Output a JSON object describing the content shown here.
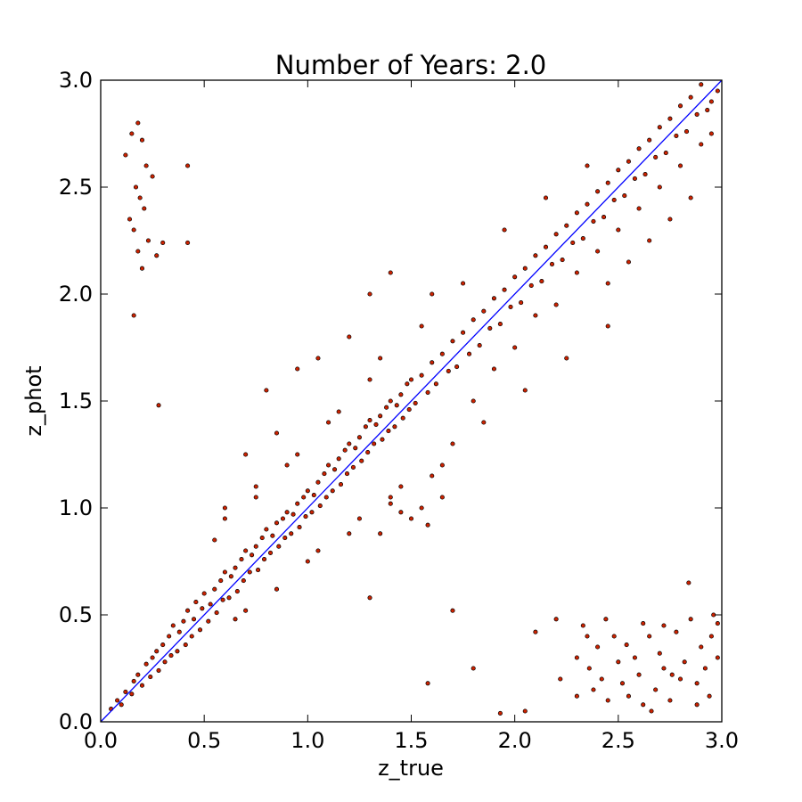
{
  "chart_data": {
    "type": "scatter",
    "title": "Number of Years: 2.0",
    "xlabel": "z_true",
    "ylabel": "z_phot",
    "xlim": [
      0.0,
      3.0
    ],
    "ylim": [
      0.0,
      3.0
    ],
    "x_ticks": [
      "0.0",
      "0.5",
      "1.0",
      "1.5",
      "2.0",
      "2.5",
      "3.0"
    ],
    "y_ticks": [
      "0.0",
      "0.5",
      "1.0",
      "1.5",
      "2.0",
      "2.5",
      "3.0"
    ],
    "grid": false,
    "legend": "none",
    "colors": {
      "marker_fill": "#cc2200",
      "marker_edge": "#000000",
      "reference_line": "#0000ff"
    },
    "reference_line": {
      "x": [
        0.0,
        3.0
      ],
      "y": [
        0.0,
        3.0
      ]
    },
    "series": [
      {
        "points": [
          [
            0.05,
            0.06
          ],
          [
            0.08,
            0.1
          ],
          [
            0.1,
            0.08
          ],
          [
            0.12,
            0.14
          ],
          [
            0.15,
            0.13
          ],
          [
            0.16,
            0.19
          ],
          [
            0.18,
            0.22
          ],
          [
            0.2,
            0.17
          ],
          [
            0.22,
            0.27
          ],
          [
            0.24,
            0.21
          ],
          [
            0.25,
            0.3
          ],
          [
            0.27,
            0.33
          ],
          [
            0.28,
            0.24
          ],
          [
            0.3,
            0.36
          ],
          [
            0.31,
            0.28
          ],
          [
            0.33,
            0.4
          ],
          [
            0.34,
            0.31
          ],
          [
            0.35,
            0.45
          ],
          [
            0.37,
            0.33
          ],
          [
            0.38,
            0.42
          ],
          [
            0.4,
            0.47
          ],
          [
            0.41,
            0.36
          ],
          [
            0.42,
            0.52
          ],
          [
            0.44,
            0.4
          ],
          [
            0.45,
            0.48
          ],
          [
            0.46,
            0.56
          ],
          [
            0.48,
            0.43
          ],
          [
            0.49,
            0.53
          ],
          [
            0.5,
            0.6
          ],
          [
            0.52,
            0.47
          ],
          [
            0.53,
            0.55
          ],
          [
            0.55,
            0.62
          ],
          [
            0.56,
            0.51
          ],
          [
            0.58,
            0.66
          ],
          [
            0.59,
            0.57
          ],
          [
            0.6,
            0.7
          ],
          [
            0.62,
            0.58
          ],
          [
            0.63,
            0.68
          ],
          [
            0.65,
            0.72
          ],
          [
            0.66,
            0.61
          ],
          [
            0.68,
            0.76
          ],
          [
            0.69,
            0.66
          ],
          [
            0.7,
            0.8
          ],
          [
            0.72,
            0.7
          ],
          [
            0.73,
            0.78
          ],
          [
            0.75,
            0.82
          ],
          [
            0.76,
            0.71
          ],
          [
            0.78,
            0.86
          ],
          [
            0.79,
            0.76
          ],
          [
            0.8,
            0.9
          ],
          [
            0.82,
            0.79
          ],
          [
            0.83,
            0.87
          ],
          [
            0.85,
            0.93
          ],
          [
            0.86,
            0.82
          ],
          [
            0.88,
            0.95
          ],
          [
            0.89,
            0.86
          ],
          [
            0.9,
            0.98
          ],
          [
            0.92,
            0.88
          ],
          [
            0.93,
            0.97
          ],
          [
            0.95,
            1.02
          ],
          [
            0.96,
            0.91
          ],
          [
            0.98,
            1.05
          ],
          [
            0.99,
            0.96
          ],
          [
            1.0,
            1.08
          ],
          [
            1.02,
            0.98
          ],
          [
            1.03,
            1.06
          ],
          [
            1.05,
            1.12
          ],
          [
            1.06,
            1.01
          ],
          [
            1.08,
            1.16
          ],
          [
            1.09,
            1.05
          ],
          [
            1.1,
            1.2
          ],
          [
            1.12,
            1.08
          ],
          [
            1.13,
            1.18
          ],
          [
            1.15,
            1.23
          ],
          [
            1.16,
            1.11
          ],
          [
            1.18,
            1.27
          ],
          [
            1.19,
            1.16
          ],
          [
            1.2,
            1.3
          ],
          [
            1.22,
            1.19
          ],
          [
            1.23,
            1.28
          ],
          [
            1.25,
            1.33
          ],
          [
            1.26,
            1.22
          ],
          [
            1.28,
            1.38
          ],
          [
            1.29,
            1.26
          ],
          [
            1.3,
            1.41
          ],
          [
            1.32,
            1.3
          ],
          [
            1.33,
            1.39
          ],
          [
            1.35,
            1.43
          ],
          [
            1.36,
            1.32
          ],
          [
            1.38,
            1.47
          ],
          [
            1.39,
            1.36
          ],
          [
            1.4,
            1.5
          ],
          [
            1.42,
            1.38
          ],
          [
            1.43,
            1.48
          ],
          [
            1.45,
            1.53
          ],
          [
            1.46,
            1.42
          ],
          [
            1.48,
            1.58
          ],
          [
            1.49,
            1.46
          ],
          [
            1.5,
            1.6
          ],
          [
            1.52,
            1.49
          ],
          [
            1.55,
            1.62
          ],
          [
            1.58,
            1.54
          ],
          [
            1.6,
            1.68
          ],
          [
            1.62,
            1.58
          ],
          [
            1.65,
            1.72
          ],
          [
            1.68,
            1.64
          ],
          [
            1.7,
            1.78
          ],
          [
            1.72,
            1.66
          ],
          [
            1.75,
            1.82
          ],
          [
            1.78,
            1.72
          ],
          [
            1.8,
            1.88
          ],
          [
            1.83,
            1.76
          ],
          [
            1.85,
            1.92
          ],
          [
            1.88,
            1.84
          ],
          [
            1.9,
            1.98
          ],
          [
            1.93,
            1.86
          ],
          [
            1.95,
            2.02
          ],
          [
            1.98,
            1.94
          ],
          [
            2.0,
            2.08
          ],
          [
            2.03,
            1.96
          ],
          [
            2.05,
            2.12
          ],
          [
            2.08,
            2.04
          ],
          [
            2.1,
            2.18
          ],
          [
            2.13,
            2.06
          ],
          [
            2.15,
            2.22
          ],
          [
            2.18,
            2.14
          ],
          [
            2.2,
            2.28
          ],
          [
            2.23,
            2.16
          ],
          [
            2.25,
            2.32
          ],
          [
            2.28,
            2.24
          ],
          [
            2.3,
            2.38
          ],
          [
            2.33,
            2.26
          ],
          [
            2.35,
            2.42
          ],
          [
            2.38,
            2.34
          ],
          [
            2.4,
            2.48
          ],
          [
            2.43,
            2.36
          ],
          [
            2.45,
            2.52
          ],
          [
            2.48,
            2.44
          ],
          [
            2.5,
            2.58
          ],
          [
            2.53,
            2.46
          ],
          [
            2.55,
            2.62
          ],
          [
            2.58,
            2.54
          ],
          [
            2.6,
            2.68
          ],
          [
            2.63,
            2.56
          ],
          [
            2.65,
            2.72
          ],
          [
            2.68,
            2.64
          ],
          [
            2.7,
            2.78
          ],
          [
            2.73,
            2.66
          ],
          [
            2.75,
            2.82
          ],
          [
            2.78,
            2.74
          ],
          [
            2.8,
            2.88
          ],
          [
            2.83,
            2.76
          ],
          [
            2.85,
            2.92
          ],
          [
            2.88,
            2.84
          ],
          [
            2.9,
            2.98
          ],
          [
            2.93,
            2.86
          ],
          [
            2.95,
            2.9
          ],
          [
            2.98,
            2.95
          ],
          [
            0.55,
            0.85
          ],
          [
            0.65,
            0.48
          ],
          [
            0.75,
            1.05
          ],
          [
            0.85,
            0.62
          ],
          [
            0.95,
            1.25
          ],
          [
            1.05,
            0.8
          ],
          [
            1.15,
            1.45
          ],
          [
            1.25,
            0.95
          ],
          [
            1.35,
            1.7
          ],
          [
            1.45,
            1.1
          ],
          [
            1.55,
            1.85
          ],
          [
            1.65,
            1.2
          ],
          [
            1.75,
            2.05
          ],
          [
            1.85,
            1.4
          ],
          [
            1.95,
            2.3
          ],
          [
            2.05,
            1.55
          ],
          [
            2.15,
            2.45
          ],
          [
            2.25,
            1.7
          ],
          [
            2.35,
            2.6
          ],
          [
            2.45,
            1.85
          ],
          [
            0.6,
            0.95
          ],
          [
            0.7,
            0.52
          ],
          [
            0.9,
            1.2
          ],
          [
            1.0,
            0.75
          ],
          [
            1.1,
            1.4
          ],
          [
            1.2,
            0.88
          ],
          [
            1.3,
            1.6
          ],
          [
            1.4,
            1.02
          ],
          [
            1.6,
            2.0
          ],
          [
            1.7,
            1.3
          ],
          [
            1.5,
            0.95
          ],
          [
            1.55,
            1.0
          ],
          [
            1.45,
            0.98
          ],
          [
            1.4,
            1.05
          ],
          [
            1.6,
            1.15
          ],
          [
            1.58,
            0.92
          ],
          [
            1.35,
            0.88
          ],
          [
            1.65,
            1.05
          ],
          [
            1.8,
            1.5
          ],
          [
            1.9,
            1.65
          ],
          [
            2.0,
            1.75
          ],
          [
            2.1,
            1.9
          ],
          [
            2.2,
            1.95
          ],
          [
            2.3,
            2.1
          ],
          [
            2.4,
            2.2
          ],
          [
            2.5,
            2.3
          ],
          [
            2.6,
            2.4
          ],
          [
            2.7,
            2.5
          ],
          [
            2.8,
            2.6
          ],
          [
            2.9,
            2.7
          ],
          [
            2.95,
            2.75
          ],
          [
            2.85,
            2.45
          ],
          [
            2.75,
            2.35
          ],
          [
            2.65,
            2.25
          ],
          [
            2.55,
            2.15
          ],
          [
            2.45,
            2.05
          ],
          [
            0.6,
            1.0
          ],
          [
            0.75,
            1.1
          ],
          [
            0.85,
            1.35
          ],
          [
            0.8,
            1.55
          ],
          [
            0.95,
            1.65
          ],
          [
            0.7,
            1.25
          ],
          [
            1.05,
            1.7
          ],
          [
            1.2,
            1.8
          ],
          [
            1.3,
            2.0
          ],
          [
            1.4,
            2.1
          ],
          [
            0.12,
            2.65
          ],
          [
            0.15,
            2.75
          ],
          [
            0.18,
            2.8
          ],
          [
            0.2,
            2.72
          ],
          [
            0.22,
            2.6
          ],
          [
            0.17,
            2.5
          ],
          [
            0.19,
            2.45
          ],
          [
            0.21,
            2.4
          ],
          [
            0.25,
            2.55
          ],
          [
            0.16,
            2.3
          ],
          [
            0.14,
            2.35
          ],
          [
            0.18,
            2.2
          ],
          [
            0.2,
            2.12
          ],
          [
            0.23,
            2.25
          ],
          [
            0.27,
            2.18
          ],
          [
            0.3,
            2.24
          ],
          [
            0.42,
            2.24
          ],
          [
            0.42,
            2.6
          ],
          [
            0.16,
            1.9
          ],
          [
            0.28,
            1.48
          ],
          [
            2.33,
            0.45
          ],
          [
            2.36,
            0.25
          ],
          [
            2.38,
            0.15
          ],
          [
            2.4,
            0.35
          ],
          [
            2.42,
            0.2
          ],
          [
            2.45,
            0.1
          ],
          [
            2.48,
            0.4
          ],
          [
            2.5,
            0.28
          ],
          [
            2.52,
            0.18
          ],
          [
            2.55,
            0.12
          ],
          [
            2.58,
            0.3
          ],
          [
            2.6,
            0.22
          ],
          [
            2.62,
            0.08
          ],
          [
            2.65,
            0.4
          ],
          [
            2.68,
            0.15
          ],
          [
            2.7,
            0.32
          ],
          [
            2.72,
            0.25
          ],
          [
            2.75,
            0.1
          ],
          [
            2.78,
            0.42
          ],
          [
            2.8,
            0.2
          ],
          [
            2.82,
            0.28
          ],
          [
            2.85,
            0.48
          ],
          [
            2.88,
            0.18
          ],
          [
            2.9,
            0.35
          ],
          [
            2.92,
            0.25
          ],
          [
            2.95,
            0.4
          ],
          [
            2.98,
            0.3
          ],
          [
            2.35,
            0.4
          ],
          [
            2.44,
            0.48
          ],
          [
            2.66,
            0.05
          ],
          [
            2.72,
            0.45
          ],
          [
            2.84,
            0.65
          ],
          [
            2.96,
            0.5
          ],
          [
            2.3,
            0.12
          ],
          [
            2.54,
            0.36
          ],
          [
            2.62,
            0.46
          ],
          [
            2.76,
            0.22
          ],
          [
            2.88,
            0.08
          ],
          [
            2.94,
            0.12
          ],
          [
            2.98,
            0.46
          ],
          [
            2.05,
            0.05
          ],
          [
            2.1,
            0.42
          ],
          [
            2.22,
            0.2
          ],
          [
            1.93,
            0.04
          ],
          [
            1.3,
            0.58
          ],
          [
            1.58,
            0.18
          ],
          [
            1.7,
            0.52
          ],
          [
            1.8,
            0.25
          ],
          [
            2.2,
            0.48
          ],
          [
            2.3,
            0.3
          ]
        ]
      }
    ]
  }
}
